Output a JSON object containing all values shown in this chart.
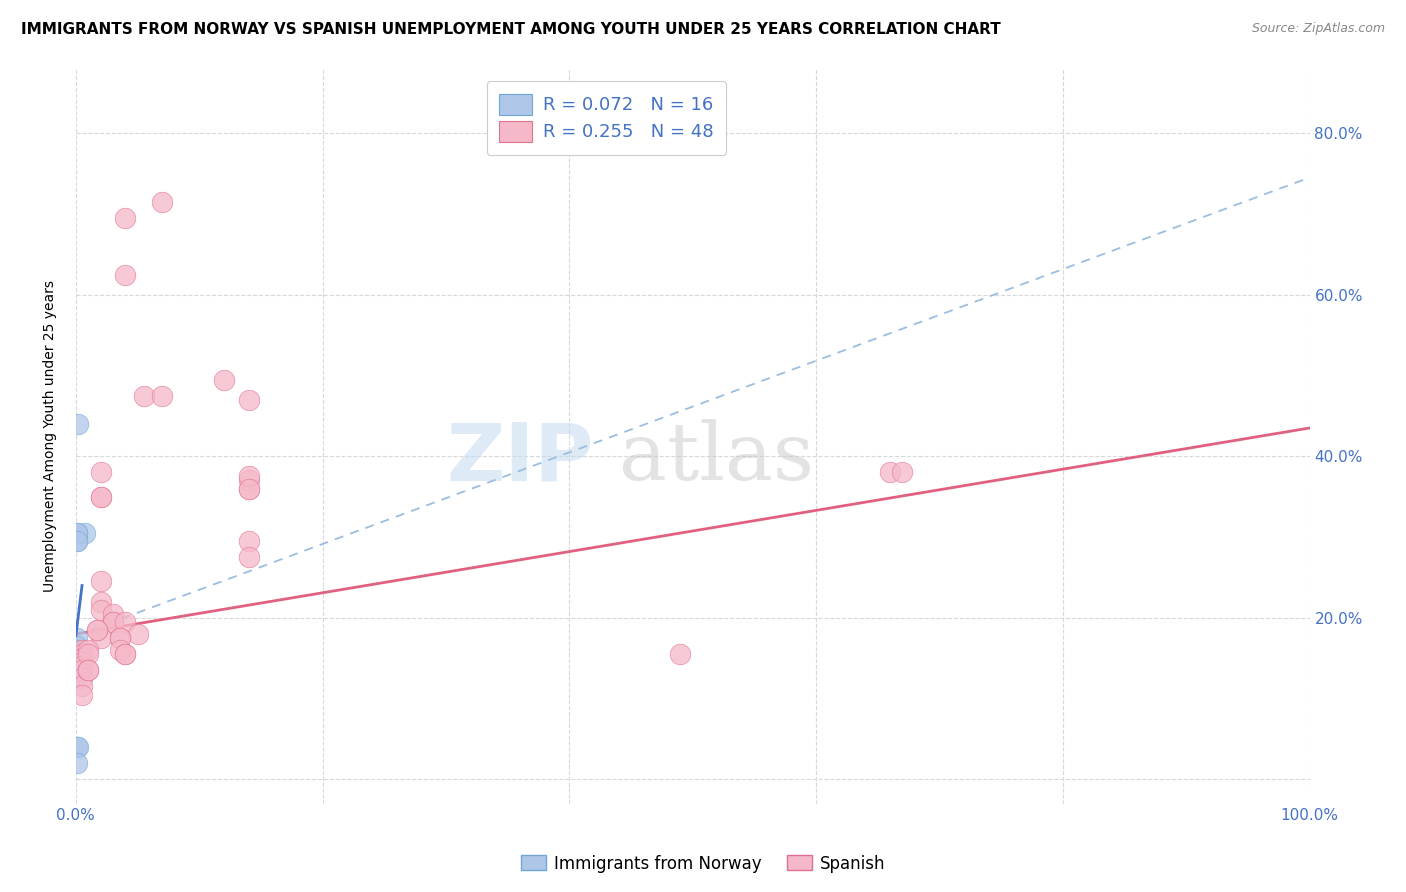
{
  "title": "IMMIGRANTS FROM NORWAY VS SPANISH UNEMPLOYMENT AMONG YOUTH UNDER 25 YEARS CORRELATION CHART",
  "source": "Source: ZipAtlas.com",
  "ylabel": "Unemployment Among Youth under 25 years",
  "xlim": [
    0,
    1.0
  ],
  "ylim": [
    -0.03,
    0.88
  ],
  "xticks": [
    0.0,
    0.2,
    0.4,
    0.6,
    0.8,
    1.0
  ],
  "xticklabels": [
    "0.0%",
    "",
    "",
    "",
    "",
    "100.0%"
  ],
  "yticks": [
    0.0,
    0.2,
    0.4,
    0.6,
    0.8
  ],
  "yticklabels_right": [
    "",
    "20.0%",
    "40.0%",
    "60.0%",
    "80.0%"
  ],
  "legend1_label": "R = 0.072   N = 16",
  "legend2_label": "R = 0.255   N = 48",
  "scatter_color_blue": "#aec6e8",
  "scatter_color_pink": "#f5b8c8",
  "scatter_edgecolor_blue": "#6fa8d6",
  "scatter_edgecolor_pink": "#e07090",
  "trend_color_blue": "#9bbde0",
  "trend_color_pink": "#e06080",
  "watermark_zip": "ZIP",
  "watermark_atlas": "atlas",
  "blue_points_x": [
    0.002,
    0.007,
    0.001,
    0.001,
    0.001,
    0.001,
    0.001,
    0.001,
    0.001,
    0.001,
    0.001,
    0.001,
    0.001,
    0.001,
    0.002,
    0.001
  ],
  "blue_points_y": [
    0.44,
    0.305,
    0.305,
    0.295,
    0.305,
    0.295,
    0.175,
    0.165,
    0.16,
    0.155,
    0.14,
    0.14,
    0.13,
    0.04,
    0.04,
    0.02
  ],
  "pink_points_x": [
    0.04,
    0.04,
    0.07,
    0.12,
    0.055,
    0.14,
    0.14,
    0.14,
    0.14,
    0.14,
    0.02,
    0.02,
    0.02,
    0.02,
    0.02,
    0.02,
    0.03,
    0.03,
    0.03,
    0.04,
    0.05,
    0.02,
    0.07,
    0.14,
    0.14,
    0.017,
    0.017,
    0.036,
    0.036,
    0.036,
    0.04,
    0.04,
    0.005,
    0.005,
    0.005,
    0.005,
    0.005,
    0.005,
    0.005,
    0.005,
    0.005,
    0.01,
    0.01,
    0.01,
    0.01,
    0.66,
    0.67,
    0.49
  ],
  "pink_points_y": [
    0.695,
    0.625,
    0.715,
    0.495,
    0.475,
    0.47,
    0.37,
    0.36,
    0.375,
    0.36,
    0.38,
    0.35,
    0.35,
    0.245,
    0.22,
    0.21,
    0.205,
    0.195,
    0.195,
    0.195,
    0.18,
    0.175,
    0.475,
    0.295,
    0.275,
    0.185,
    0.185,
    0.175,
    0.175,
    0.16,
    0.155,
    0.155,
    0.16,
    0.155,
    0.15,
    0.145,
    0.14,
    0.135,
    0.125,
    0.115,
    0.105,
    0.16,
    0.155,
    0.135,
    0.135,
    0.38,
    0.38,
    0.155
  ],
  "blue_trend_x": [
    0.0,
    1.0
  ],
  "blue_trend_y": [
    0.178,
    0.745
  ],
  "pink_trend_x": [
    0.0,
    1.0
  ],
  "pink_trend_y": [
    0.18,
    0.435
  ],
  "blue_short_line_x": [
    0.0,
    0.005
  ],
  "blue_short_line_y": [
    0.178,
    0.24
  ],
  "grid_color": "#d8d8d8",
  "title_fontsize": 11,
  "axis_label_fontsize": 10,
  "tick_label_fontsize": 11,
  "tick_label_color": "#4472c4",
  "background_color": "#ffffff"
}
